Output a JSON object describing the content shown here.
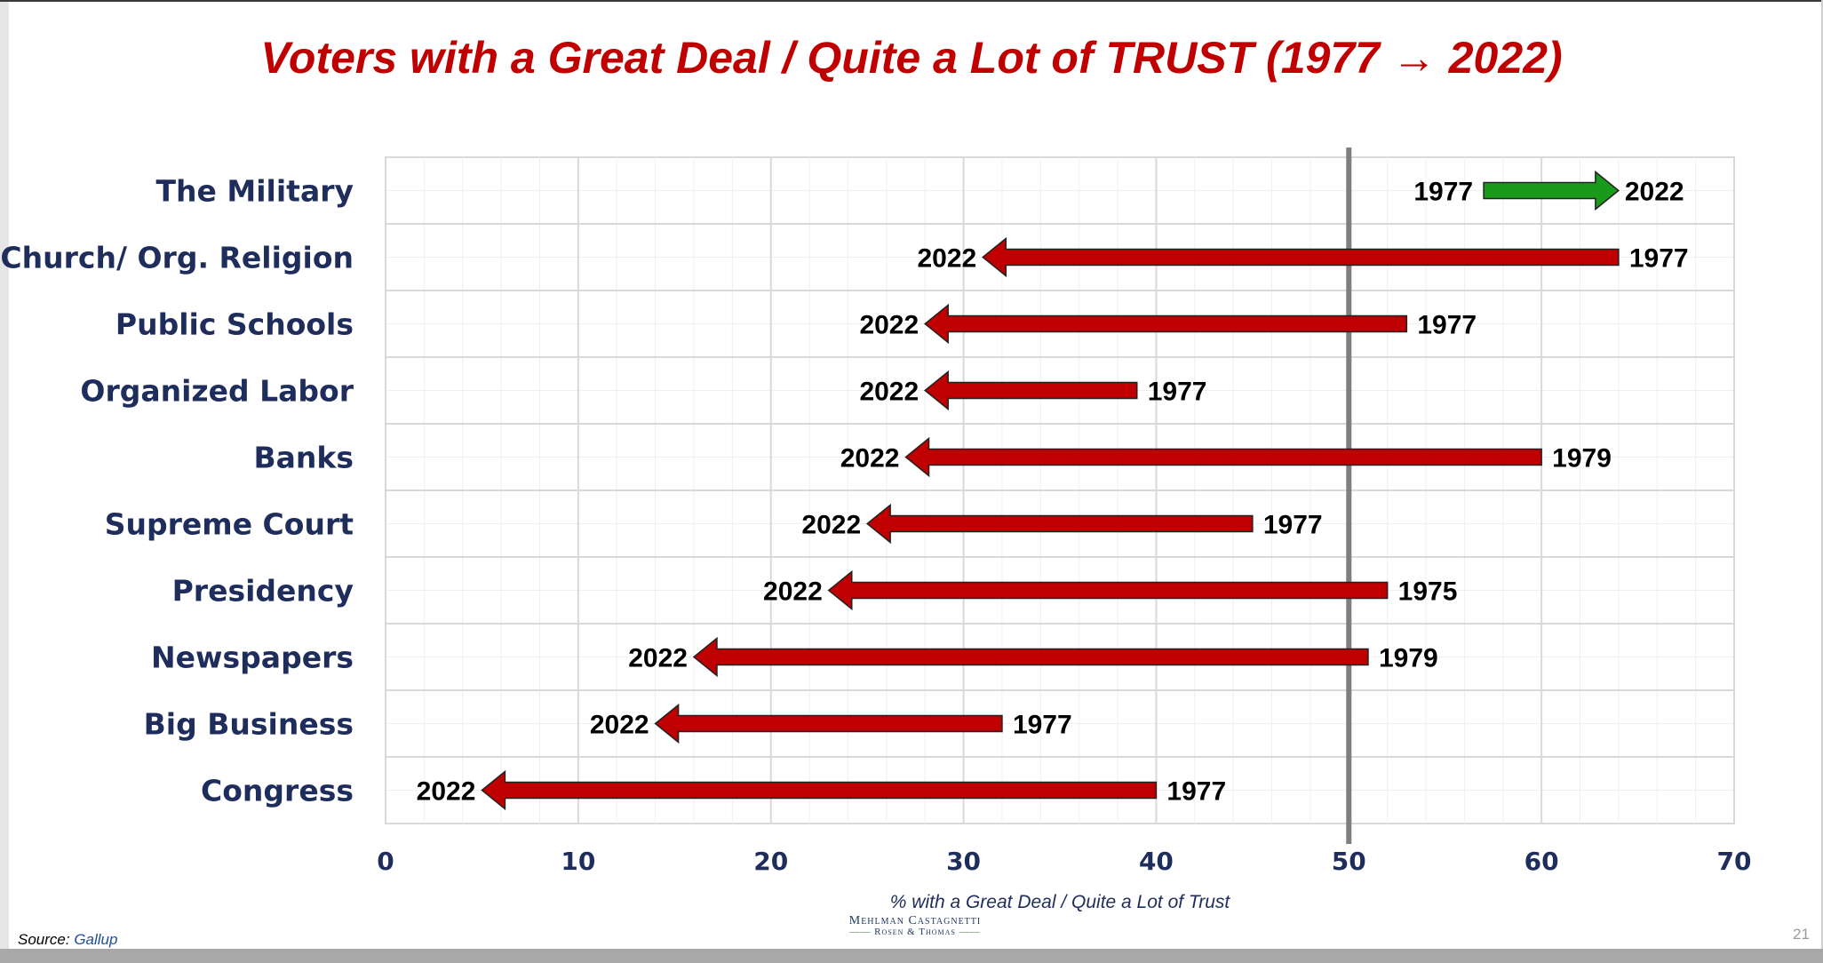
{
  "slide": {
    "title": "Voters with a Great Deal / Quite a Lot of TRUST (1977 → 2022)",
    "source_label": "Source:",
    "source_name": "Gallup",
    "logo_line1": "Mehlman Castagnetti",
    "logo_line2": "Rosen & Thomas",
    "page_number": "21"
  },
  "colors": {
    "decline": "#c00000",
    "increase": "#1a9a1a",
    "label_text": "#1f2d5c",
    "reference_line": "#7f7f7f",
    "grid_major": "#d9d9d9",
    "grid_minor": "#efefef"
  },
  "chart_data": {
    "type": "arrow-dumbbell",
    "title": "Voters with a Great Deal / Quite a Lot of TRUST (1977 → 2022)",
    "xlabel": "% with a Great Deal / Quite a Lot of Trust",
    "ylabel": "",
    "xlim": [
      0,
      70
    ],
    "x_ticks": [
      0,
      10,
      20,
      30,
      40,
      50,
      60,
      70
    ],
    "reference_line": 50,
    "grid": true,
    "categories": [
      "The Military",
      "Church/ Org. Religion",
      "Public Schools",
      "Organized Labor",
      "Banks",
      "Supreme Court",
      "Presidency",
      "Newspapers",
      "Big Business",
      "Congress"
    ],
    "items": [
      {
        "category": "The Military",
        "start_year": "1977",
        "start": 57,
        "end_year": "2022",
        "end": 64
      },
      {
        "category": "Church/ Org. Religion",
        "start_year": "1977",
        "start": 64,
        "end_year": "2022",
        "end": 31
      },
      {
        "category": "Public Schools",
        "start_year": "1977",
        "start": 53,
        "end_year": "2022",
        "end": 28
      },
      {
        "category": "Organized Labor",
        "start_year": "1977",
        "start": 39,
        "end_year": "2022",
        "end": 28
      },
      {
        "category": "Banks",
        "start_year": "1979",
        "start": 60,
        "end_year": "2022",
        "end": 27
      },
      {
        "category": "Supreme Court",
        "start_year": "1977",
        "start": 45,
        "end_year": "2022",
        "end": 25
      },
      {
        "category": "Presidency",
        "start_year": "1975",
        "start": 52,
        "end_year": "2022",
        "end": 23
      },
      {
        "category": "Newspapers",
        "start_year": "1979",
        "start": 51,
        "end_year": "2022",
        "end": 16
      },
      {
        "category": "Big Business",
        "start_year": "1977",
        "start": 32,
        "end_year": "2022",
        "end": 14
      },
      {
        "category": "Congress",
        "start_year": "1977",
        "start": 40,
        "end_year": "2022",
        "end": 5
      }
    ]
  }
}
